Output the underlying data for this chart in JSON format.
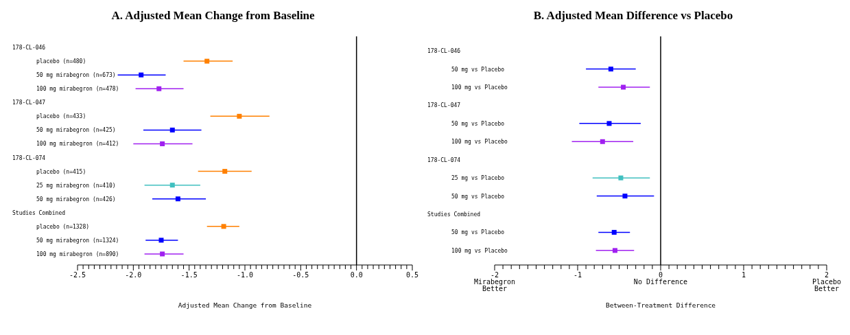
{
  "chart_data": [
    {
      "type": "scatter",
      "orientation": "horizontal",
      "title": "A. Adjusted Mean Change from Baseline",
      "xlabel": "Adjusted Mean Change from Baseline",
      "marker": "square",
      "grid": false,
      "annotations": [
        "178-CL-046",
        "178-CL-047",
        "178-CL-074",
        "Studies Combined"
      ],
      "categories": [
        null,
        "placebo (n=480)",
        "50 mg mirabegron (n=673)",
        "100 mg mirabegron (n=478)",
        null,
        "placebo (n=433)",
        "50 mg mirabegron (n=425)",
        "100 mg mirabegron (n=412)",
        null,
        "placebo (n=415)",
        "25 mg mirabegron (n=410)",
        "50 mg mirabegron (n=426)",
        null,
        "placebo (n=1328)",
        "50 mg mirabegron (n=1324)",
        "100 mg mirabegron (n=890)"
      ],
      "series": [
        {
          "color": "#ff8000",
          "values": [
            null,
            -1.34,
            null,
            null,
            null,
            -1.05,
            null,
            null,
            null,
            -1.18,
            null,
            null,
            null,
            -1.19,
            null,
            null
          ],
          "errors": [
            null,
            [
              -1.55,
              -1.11
            ],
            null,
            null,
            null,
            [
              -1.31,
              -0.78
            ],
            null,
            null,
            null,
            [
              -1.42,
              -0.94
            ],
            null,
            null,
            null,
            [
              -1.34,
              -1.05
            ],
            null,
            null
          ]
        },
        {
          "color": "#0000ff",
          "values": [
            null,
            null,
            -1.93,
            null,
            null,
            null,
            -1.65,
            null,
            null,
            null,
            null,
            -1.6,
            null,
            null,
            -1.75,
            null
          ],
          "errors": [
            null,
            null,
            [
              -2.14,
              -1.71
            ],
            null,
            null,
            null,
            [
              -1.91,
              -1.39
            ],
            null,
            null,
            null,
            null,
            [
              -1.83,
              -1.35
            ],
            null,
            null,
            [
              -1.89,
              -1.6
            ],
            null
          ]
        },
        {
          "color": "#a020f0",
          "values": [
            null,
            null,
            null,
            -1.77,
            null,
            null,
            null,
            -1.74,
            null,
            null,
            null,
            null,
            null,
            null,
            null,
            -1.74
          ],
          "errors": [
            null,
            null,
            null,
            [
              -1.98,
              -1.55
            ],
            null,
            null,
            null,
            [
              -2.0,
              -1.47
            ],
            null,
            null,
            null,
            null,
            null,
            null,
            null,
            [
              -1.9,
              -1.55
            ]
          ]
        },
        {
          "color": "#40c0c0",
          "values": [
            null,
            null,
            null,
            null,
            null,
            null,
            null,
            null,
            null,
            null,
            -1.65,
            null,
            null,
            null,
            null,
            null
          ],
          "errors": [
            null,
            null,
            null,
            null,
            null,
            null,
            null,
            null,
            null,
            null,
            [
              -1.9,
              -1.4
            ],
            null,
            null,
            null,
            null,
            null
          ]
        }
      ],
      "xlim": [
        -2.5,
        0.5
      ],
      "xticks": [
        -2.5,
        {
          "value": -2.45,
          "label": null
        },
        {
          "value": -2.4,
          "label": null
        },
        {
          "value": -2.35,
          "label": null
        },
        {
          "value": -2.3,
          "label": null
        },
        {
          "value": -2.25,
          "label": null
        },
        {
          "value": -2.2,
          "label": null
        },
        {
          "value": -2.15,
          "label": null
        },
        {
          "value": -2.1,
          "label": null
        },
        {
          "value": -2.05,
          "label": null
        },
        {
          "value": -2,
          "label": "-2.0"
        },
        {
          "value": -1.95,
          "label": null
        },
        {
          "value": -1.9,
          "label": null
        },
        {
          "value": -1.85,
          "label": null
        },
        {
          "value": -1.8,
          "label": null
        },
        {
          "value": -1.75,
          "label": null
        },
        {
          "value": -1.7,
          "label": null
        },
        {
          "value": -1.65,
          "label": null
        },
        {
          "value": -1.6,
          "label": null
        },
        {
          "value": -1.55,
          "label": null
        },
        -1.5,
        {
          "value": -1.45,
          "label": null
        },
        {
          "value": -1.4,
          "label": null
        },
        {
          "value": -1.35,
          "label": null
        },
        {
          "value": -1.3,
          "label": null
        },
        {
          "value": -1.25,
          "label": null
        },
        {
          "value": -1.2,
          "label": null
        },
        {
          "value": -1.15,
          "label": null
        },
        {
          "value": -1.1,
          "label": null
        },
        {
          "value": -1.05,
          "label": null
        },
        {
          "value": -1,
          "label": "-1.0"
        },
        {
          "value": -0.95,
          "label": null
        },
        {
          "value": -0.9,
          "label": null
        },
        {
          "value": -0.85,
          "label": null
        },
        {
          "value": -0.8,
          "label": null
        },
        {
          "value": -0.75,
          "label": null
        },
        {
          "value": -0.7,
          "label": null
        },
        {
          "value": -0.65,
          "label": null
        },
        {
          "value": -0.6,
          "label": null
        },
        {
          "value": -0.55,
          "label": null
        },
        -0.5,
        {
          "value": -0.45,
          "label": null
        },
        {
          "value": -0.4,
          "label": null
        },
        {
          "value": -0.35,
          "label": null
        },
        {
          "value": -0.3,
          "label": null
        },
        {
          "value": -0.25,
          "label": null
        },
        {
          "value": -0.2,
          "label": null
        },
        {
          "value": -0.15,
          "label": null
        },
        {
          "value": -0.1,
          "label": null
        },
        {
          "value": -0.05,
          "label": null
        },
        {
          "value": 0,
          "label": "0.0"
        },
        {
          "value": 0.05,
          "label": null
        },
        {
          "value": 0.1,
          "label": null
        },
        {
          "value": 0.15,
          "label": null
        },
        {
          "value": 0.2,
          "label": null
        },
        {
          "value": 0.25,
          "label": null
        },
        {
          "value": 0.3,
          "label": null
        },
        {
          "value": 0.35,
          "label": null
        },
        {
          "value": 0.4,
          "label": null
        },
        {
          "value": 0.45,
          "label": null
        },
        0.5
      ],
      "ref_lines": [
        {
          "axis": "x",
          "value": 0,
          "color": "#000000"
        }
      ]
    },
    {
      "type": "scatter",
      "orientation": "horizontal",
      "title": "B. Adjusted Mean Difference vs Placebo",
      "xlabel": "Between-Treatment Difference",
      "marker": "square",
      "grid": false,
      "annotations": [
        "178-CL-046",
        "178-CL-047",
        "178-CL-074",
        "Studies Combined"
      ],
      "categories": [
        null,
        "50 mg vs Placebo",
        "100 mg vs Placebo",
        null,
        "50 mg vs Placebo",
        "100 mg vs Placebo",
        null,
        "25 mg vs Placebo",
        "50 mg vs Placebo",
        null,
        "50 mg vs Placebo",
        "100 mg vs Placebo"
      ],
      "series": [
        {
          "color": "#0000ff",
          "values": [
            null,
            -0.6,
            null,
            null,
            -0.62,
            null,
            null,
            null,
            -0.43,
            null,
            -0.56,
            null
          ],
          "errors": [
            null,
            [
              -0.9,
              -0.3
            ],
            null,
            null,
            [
              -0.98,
              -0.24
            ],
            null,
            null,
            null,
            [
              -0.77,
              -0.08
            ],
            null,
            [
              -0.75,
              -0.37
            ],
            null
          ]
        },
        {
          "color": "#a020f0",
          "values": [
            null,
            null,
            -0.45,
            null,
            null,
            -0.7,
            null,
            null,
            null,
            null,
            null,
            -0.55
          ],
          "errors": [
            null,
            null,
            [
              -0.75,
              -0.13
            ],
            null,
            null,
            [
              -1.07,
              -0.33
            ],
            null,
            null,
            null,
            null,
            null,
            [
              -0.78,
              -0.32
            ]
          ]
        },
        {
          "color": "#40c0c0",
          "values": [
            null,
            null,
            null,
            null,
            null,
            null,
            null,
            -0.48,
            null,
            null,
            null,
            null
          ],
          "errors": [
            null,
            null,
            null,
            null,
            null,
            null,
            null,
            [
              -0.82,
              -0.13
            ],
            null,
            null,
            null,
            null
          ]
        }
      ],
      "xlim": [
        -2,
        2
      ],
      "xticks": [
        {
          "value": -2,
          "label": "-2\nMirabegron\nBetter"
        },
        {
          "value": -1.9,
          "label": null
        },
        {
          "value": -1.8,
          "label": null
        },
        {
          "value": -1.7,
          "label": null
        },
        {
          "value": -1.6,
          "label": null
        },
        {
          "value": -1.5,
          "label": null
        },
        {
          "value": -1.4,
          "label": null
        },
        {
          "value": -1.3,
          "label": null
        },
        {
          "value": -1.2,
          "label": null
        },
        {
          "value": -1.1,
          "label": null
        },
        -1,
        {
          "value": -0.9,
          "label": null
        },
        {
          "value": -0.8,
          "label": null
        },
        {
          "value": -0.7,
          "label": null
        },
        {
          "value": -0.6,
          "label": null
        },
        {
          "value": -0.5,
          "label": null
        },
        {
          "value": -0.4,
          "label": null
        },
        {
          "value": -0.3,
          "label": null
        },
        {
          "value": -0.2,
          "label": null
        },
        {
          "value": -0.1,
          "label": null
        },
        {
          "value": 0,
          "label": "0\nNo Difference"
        },
        {
          "value": 0.1,
          "label": null
        },
        {
          "value": 0.2,
          "label": null
        },
        {
          "value": 0.3,
          "label": null
        },
        {
          "value": 0.4,
          "label": null
        },
        {
          "value": 0.5,
          "label": null
        },
        {
          "value": 0.6,
          "label": null
        },
        {
          "value": 0.7,
          "label": null
        },
        {
          "value": 0.8,
          "label": null
        },
        {
          "value": 0.9,
          "label": null
        },
        1,
        {
          "value": 1.1,
          "label": null
        },
        {
          "value": 1.2,
          "label": null
        },
        {
          "value": 1.3,
          "label": null
        },
        {
          "value": 1.4,
          "label": null
        },
        {
          "value": 1.5,
          "label": null
        },
        {
          "value": 1.6,
          "label": null
        },
        {
          "value": 1.7,
          "label": null
        },
        {
          "value": 1.8,
          "label": null
        },
        {
          "value": 1.9,
          "label": null
        },
        {
          "value": 2,
          "label": "2\nPlacebo\nBetter"
        }
      ],
      "ref_lines": [
        {
          "axis": "x",
          "value": 0,
          "color": "#000000"
        }
      ]
    }
  ]
}
